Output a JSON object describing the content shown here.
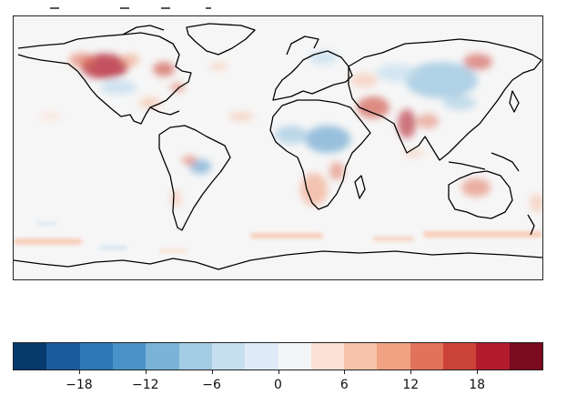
{
  "map": {
    "projection": "equirectangular",
    "background_color": "#f6f6f6",
    "coastline_color": "#000000"
  },
  "colorbar": {
    "colors": [
      "#073a6c",
      "#1a5b9c",
      "#2e78b8",
      "#4a93c8",
      "#79b4d8",
      "#a3cbe3",
      "#c6dff0",
      "#deebf6",
      "#f4f5f7",
      "#fbe2d4",
      "#f7c3aa",
      "#f1a282",
      "#e2735b",
      "#cc4339",
      "#b31b2c",
      "#7a0a1e"
    ],
    "tick_values": [
      -18,
      -12,
      -6,
      0,
      6,
      12,
      18
    ],
    "tick_labels": [
      "−18",
      "−12",
      "−6",
      "0",
      "6",
      "12",
      "18"
    ],
    "vmin": -24,
    "vmax": 24
  }
}
